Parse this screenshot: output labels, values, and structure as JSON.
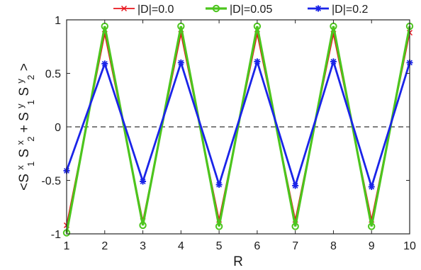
{
  "chart_data": {
    "type": "line",
    "title": "",
    "xlabel": "R",
    "ylabel": "<S^x_1 S^x_2 + S^y_1 S^y_2>",
    "ylabel_parts": {
      "open": "<S",
      "x": "x",
      "one": "1",
      "S": "S",
      "two": "2",
      "plus": " + S",
      "y": "y",
      "close": ">"
    },
    "x": [
      1,
      2,
      3,
      4,
      5,
      6,
      7,
      8,
      9,
      10
    ],
    "xlim": [
      1,
      10
    ],
    "ylim": [
      -1,
      1
    ],
    "xticks": [
      1,
      2,
      3,
      4,
      5,
      6,
      7,
      8,
      9,
      10
    ],
    "yticks": [
      -1,
      -0.5,
      0,
      0.5,
      1
    ],
    "xtick_labels": [
      "1",
      "2",
      "3",
      "4",
      "5",
      "6",
      "7",
      "8",
      "9",
      "10"
    ],
    "ytick_labels": [
      "-1",
      "-0.5",
      "0",
      "0.5",
      "1"
    ],
    "reference_line": {
      "y": 0,
      "style": "dashed",
      "color": "#000000"
    },
    "grid": false,
    "legend_position": "top-outside",
    "series": [
      {
        "name": "|D|=0.0",
        "color": "#e8141c",
        "marker": "x",
        "values": [
          -0.92,
          0.87,
          -0.88,
          0.87,
          -0.87,
          0.87,
          -0.87,
          0.87,
          -0.87,
          0.88
        ]
      },
      {
        "name": "|D|=0.05",
        "color": "#4cc51d",
        "marker": "circle",
        "values": [
          -0.99,
          0.94,
          -0.92,
          0.94,
          -0.93,
          0.94,
          -0.93,
          0.94,
          -0.93,
          0.94
        ]
      },
      {
        "name": "|D|=0.2",
        "color": "#1a24e8",
        "marker": "star",
        "values": [
          -0.41,
          0.59,
          -0.51,
          0.6,
          -0.54,
          0.61,
          -0.55,
          0.61,
          -0.56,
          0.6
        ]
      }
    ]
  }
}
